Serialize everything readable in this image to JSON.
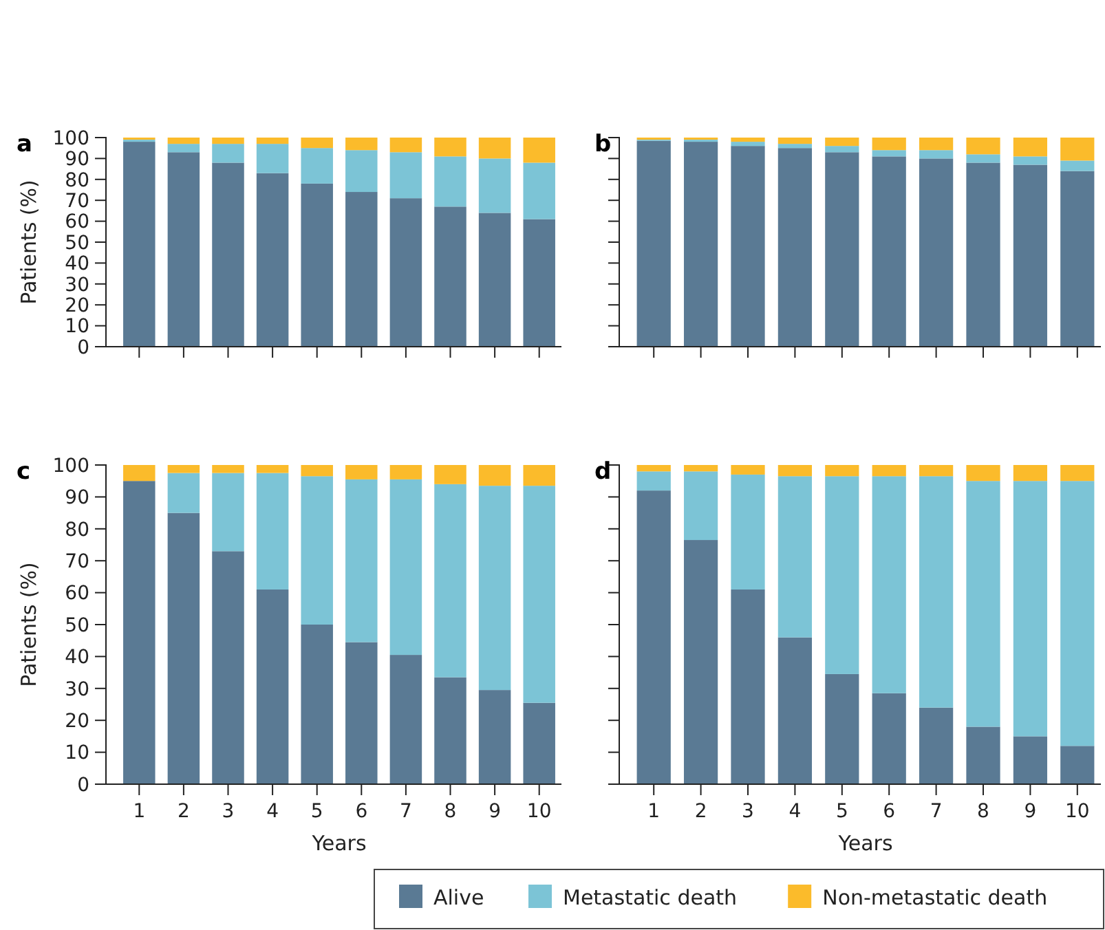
{
  "chart_data": [
    {
      "type": "bar",
      "title": "a",
      "ylabel": "Patients (%)",
      "stacked": true,
      "tick_labels": "y",
      "categories": [
        "1",
        "2",
        "3",
        "4",
        "5",
        "6",
        "7",
        "8",
        "9",
        "10"
      ],
      "ylim": [
        0,
        100
      ],
      "yticks": [
        0,
        10,
        20,
        30,
        40,
        50,
        60,
        70,
        80,
        90,
        100
      ],
      "series": [
        {
          "color": "#5a7a94",
          "values": [
            98,
            93,
            88,
            83,
            78,
            74,
            71,
            67,
            64,
            61
          ]
        },
        {
          "color": "#7cc4d6",
          "values": [
            1,
            4,
            9,
            14,
            17,
            20,
            22,
            24,
            26,
            27
          ]
        },
        {
          "color": "#fbbb2b",
          "values": [
            1,
            3,
            3,
            3,
            5,
            6,
            7,
            9,
            10,
            12
          ]
        }
      ]
    },
    {
      "type": "bar",
      "title": "b",
      "stacked": true,
      "tick_labels": false,
      "categories": [
        "1",
        "2",
        "3",
        "4",
        "5",
        "6",
        "7",
        "8",
        "9",
        "10"
      ],
      "ylim": [
        0,
        100
      ],
      "yticks": [
        0,
        10,
        20,
        30,
        40,
        50,
        60,
        70,
        80,
        90,
        100
      ],
      "series": [
        {
          "color": "#5a7a94",
          "values": [
            98.5,
            98,
            96,
            95,
            93,
            91,
            90,
            88,
            87,
            84
          ]
        },
        {
          "color": "#7cc4d6",
          "values": [
            0.5,
            1,
            2,
            2,
            3,
            3,
            4,
            4,
            4,
            5
          ]
        },
        {
          "color": "#fbbb2b",
          "values": [
            1,
            1,
            2,
            3,
            4,
            6,
            6,
            8,
            9,
            11
          ]
        }
      ]
    },
    {
      "type": "bar",
      "title": "c",
      "ylabel": "Patients (%)",
      "xlabel": "Years",
      "stacked": true,
      "categories": [
        "1",
        "2",
        "3",
        "4",
        "5",
        "6",
        "7",
        "8",
        "9",
        "10"
      ],
      "ylim": [
        0,
        100
      ],
      "yticks": [
        0,
        10,
        20,
        30,
        40,
        50,
        60,
        70,
        80,
        90,
        100
      ],
      "series": [
        {
          "color": "#5a7a94",
          "values": [
            95,
            85,
            73,
            61,
            50,
            44.5,
            40.5,
            33.5,
            29.5,
            25.5
          ]
        },
        {
          "color": "#7cc4d6",
          "values": [
            0,
            12.5,
            24.5,
            36.5,
            46.5,
            51,
            55,
            60.5,
            64,
            68
          ]
        },
        {
          "color": "#fbbb2b",
          "values": [
            5,
            2.5,
            2.5,
            2.5,
            3.5,
            4.5,
            4.5,
            6,
            6.5,
            6.5
          ]
        }
      ]
    },
    {
      "type": "bar",
      "title": "d",
      "xlabel": "Years",
      "stacked": true,
      "tick_labels": "x",
      "legend": "bottom",
      "categories": [
        "1",
        "2",
        "3",
        "4",
        "5",
        "6",
        "7",
        "8",
        "9",
        "10"
      ],
      "ylim": [
        0,
        100
      ],
      "yticks": [
        0,
        10,
        20,
        30,
        40,
        50,
        60,
        70,
        80,
        90,
        100
      ],
      "series": [
        {
          "name": "Alive",
          "color": "#5a7a94",
          "values": [
            92,
            76.5,
            61,
            46,
            34.5,
            28.5,
            24,
            18,
            15,
            12
          ]
        },
        {
          "name": "Metastatic death",
          "color": "#7cc4d6",
          "values": [
            6,
            21.5,
            36,
            50.5,
            62,
            68,
            72.5,
            77,
            80,
            83
          ]
        },
        {
          "name": "Non-metastatic death",
          "color": "#fbbb2b",
          "values": [
            2,
            2,
            3,
            3.5,
            3.5,
            3.5,
            3.5,
            5,
            5,
            5
          ]
        }
      ]
    }
  ]
}
